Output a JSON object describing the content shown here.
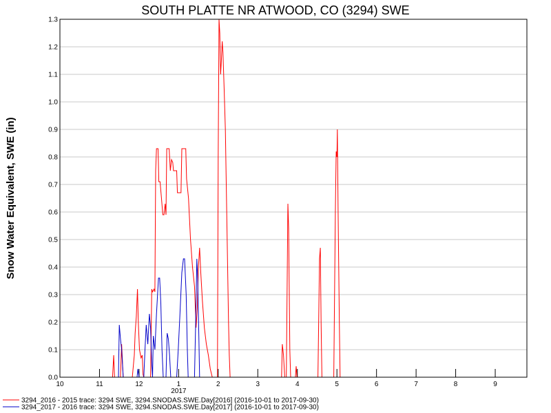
{
  "chart_data": {
    "type": "line",
    "title": "SOUTH PLATTE NR ATWOOD, CO (3294) SWE",
    "ylabel": "Snow Water Equivalent, SWE (in)",
    "xlabel": "",
    "ylim": [
      0,
      1.3
    ],
    "yticks": [
      "0.0",
      "0.1",
      "0.2",
      "0.3",
      "0.4",
      "0.5",
      "0.6",
      "0.7",
      "0.8",
      "0.9",
      "1.0",
      "1.1",
      "1.2",
      "1.3"
    ],
    "xlim": [
      0,
      11.8
    ],
    "xticks": [
      {
        "x": 0,
        "label": "10"
      },
      {
        "x": 1,
        "label": "11"
      },
      {
        "x": 2,
        "label": "12"
      },
      {
        "x": 3,
        "label": "1"
      },
      {
        "x": 4,
        "label": "2"
      },
      {
        "x": 5,
        "label": "3"
      },
      {
        "x": 6,
        "label": "4"
      },
      {
        "x": 7,
        "label": "5"
      },
      {
        "x": 8,
        "label": "6"
      },
      {
        "x": 9,
        "label": "7"
      },
      {
        "x": 10,
        "label": "8"
      },
      {
        "x": 11,
        "label": "9"
      }
    ],
    "year_label": {
      "x": 3,
      "label": "2017"
    },
    "grid": true,
    "legend_position": "bottom-left",
    "series": [
      {
        "name": "3294_2016 - 2015 trace: 3294 SWE, 3294.SNODAS.SWE.Day[2016] (2016-10-01 to 2017-09-30)",
        "color": "#ff0000",
        "points": [
          [
            1.33,
            0
          ],
          [
            1.36,
            0.08
          ],
          [
            1.38,
            0
          ],
          [
            1.53,
            0
          ],
          [
            1.56,
            0.12
          ],
          [
            1.6,
            0
          ],
          [
            1.83,
            0
          ],
          [
            1.86,
            0.05
          ],
          [
            1.88,
            0.08
          ],
          [
            1.9,
            0.16
          ],
          [
            1.93,
            0.22
          ],
          [
            1.96,
            0.32
          ],
          [
            1.98,
            0.2
          ],
          [
            2.01,
            0.1
          ],
          [
            2.05,
            0.07
          ],
          [
            2.08,
            0.08
          ],
          [
            2.1,
            0.01
          ],
          [
            2.12,
            0
          ],
          [
            2.29,
            0
          ],
          [
            2.3,
            0.1
          ],
          [
            2.32,
            0.32
          ],
          [
            2.34,
            0.31
          ],
          [
            2.38,
            0.32
          ],
          [
            2.4,
            0.31
          ],
          [
            2.42,
            0.75
          ],
          [
            2.44,
            0.83
          ],
          [
            2.48,
            0.83
          ],
          [
            2.5,
            0.71
          ],
          [
            2.53,
            0.71
          ],
          [
            2.56,
            0.66
          ],
          [
            2.6,
            0.59
          ],
          [
            2.63,
            0.59
          ],
          [
            2.66,
            0.63
          ],
          [
            2.68,
            0.59
          ],
          [
            2.7,
            0.83
          ],
          [
            2.76,
            0.83
          ],
          [
            2.79,
            0.75
          ],
          [
            2.82,
            0.79
          ],
          [
            2.85,
            0.78
          ],
          [
            2.87,
            0.75
          ],
          [
            2.95,
            0.75
          ],
          [
            2.97,
            0.67
          ],
          [
            3.06,
            0.67
          ],
          [
            3.08,
            0.83
          ],
          [
            3.18,
            0.83
          ],
          [
            3.2,
            0.72
          ],
          [
            3.25,
            0.65
          ],
          [
            3.3,
            0.5
          ],
          [
            3.35,
            0.4
          ],
          [
            3.4,
            0.33
          ],
          [
            3.44,
            0.18
          ],
          [
            3.47,
            0.25
          ],
          [
            3.5,
            0.4
          ],
          [
            3.53,
            0.47
          ],
          [
            3.56,
            0.38
          ],
          [
            3.6,
            0.28
          ],
          [
            3.65,
            0.18
          ],
          [
            3.7,
            0.12
          ],
          [
            3.75,
            0.08
          ],
          [
            3.8,
            0.03
          ],
          [
            3.85,
            0
          ],
          [
            3.98,
            0
          ],
          [
            4.0,
            0.8
          ],
          [
            4.02,
            1.3
          ],
          [
            4.04,
            1.25
          ],
          [
            4.06,
            1.1
          ],
          [
            4.08,
            1.15
          ],
          [
            4.1,
            1.22
          ],
          [
            4.12,
            1.18
          ],
          [
            4.15,
            1.05
          ],
          [
            4.18,
            0.9
          ],
          [
            4.22,
            0.55
          ],
          [
            4.26,
            0.2
          ],
          [
            4.28,
            0.08
          ],
          [
            4.3,
            0
          ],
          [
            5.6,
            0
          ],
          [
            5.62,
            0.12
          ],
          [
            5.65,
            0.08
          ],
          [
            5.68,
            0
          ],
          [
            5.72,
            0
          ],
          [
            5.76,
            0.63
          ],
          [
            5.78,
            0.54
          ],
          [
            5.81,
            0.1
          ],
          [
            5.83,
            0
          ],
          [
            5.95,
            0
          ],
          [
            5.97,
            0.04
          ],
          [
            5.99,
            0
          ],
          [
            6.52,
            0
          ],
          [
            6.56,
            0.43
          ],
          [
            6.58,
            0.47
          ],
          [
            6.6,
            0.2
          ],
          [
            6.62,
            0
          ],
          [
            6.92,
            0
          ],
          [
            6.96,
            0.6
          ],
          [
            6.98,
            0.82
          ],
          [
            7.0,
            0.8
          ],
          [
            7.01,
            0.9
          ],
          [
            7.03,
            0.6
          ],
          [
            7.06,
            0.2
          ],
          [
            7.08,
            0
          ]
        ]
      },
      {
        "name": "3294_2017 - 2016 trace: 3294 SWE, 3294.SNODAS.SWE.Day[2017] (2016-10-01 to 2017-09-30)",
        "color": "#0000c8",
        "points": [
          [
            1.48,
            0
          ],
          [
            1.5,
            0.19
          ],
          [
            1.53,
            0.14
          ],
          [
            1.56,
            0.1
          ],
          [
            1.6,
            0
          ],
          [
            1.95,
            0
          ],
          [
            1.97,
            0.03
          ],
          [
            2.0,
            0
          ],
          [
            2.12,
            0
          ],
          [
            2.15,
            0.1
          ],
          [
            2.18,
            0.19
          ],
          [
            2.22,
            0.12
          ],
          [
            2.26,
            0.23
          ],
          [
            2.29,
            0.18
          ],
          [
            2.32,
            0.05
          ],
          [
            2.34,
            0
          ],
          [
            2.36,
            0.15
          ],
          [
            2.4,
            0.1
          ],
          [
            2.44,
            0.23
          ],
          [
            2.49,
            0.36
          ],
          [
            2.52,
            0.36
          ],
          [
            2.55,
            0.27
          ],
          [
            2.58,
            0.1
          ],
          [
            2.61,
            0
          ],
          [
            2.68,
            0
          ],
          [
            2.71,
            0.16
          ],
          [
            2.74,
            0.14
          ],
          [
            2.77,
            0.08
          ],
          [
            2.8,
            0
          ],
          [
            2.95,
            0
          ],
          [
            2.99,
            0.1
          ],
          [
            3.03,
            0.22
          ],
          [
            3.08,
            0.38
          ],
          [
            3.12,
            0.43
          ],
          [
            3.15,
            0.43
          ],
          [
            3.19,
            0.3
          ],
          [
            3.22,
            0.1
          ],
          [
            3.24,
            0
          ],
          [
            3.4,
            0
          ],
          [
            3.43,
            0.2
          ],
          [
            3.46,
            0.43
          ],
          [
            3.48,
            0.36
          ],
          [
            3.51,
            0.15
          ],
          [
            3.53,
            0
          ]
        ]
      }
    ]
  }
}
